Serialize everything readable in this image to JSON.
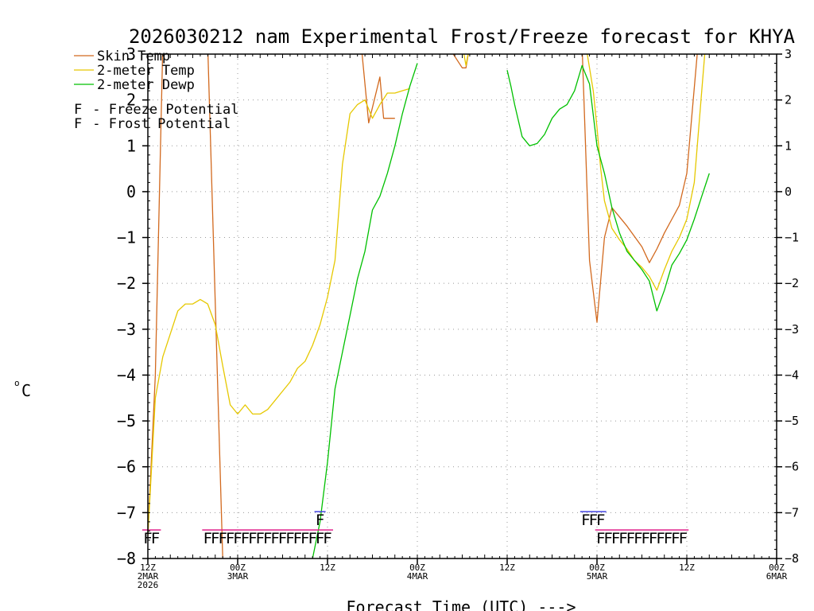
{
  "chart_data": {
    "type": "line",
    "title": "2026030212 nam Experimental Frost/Freeze forecast for KHYA",
    "xlabel": "Forecast Time (UTC) --->",
    "ylabel": "°C",
    "ylabel_degree": "o",
    "ylabel_unit": "C",
    "ylim": [
      -8,
      3
    ],
    "xlim": [
      0,
      84
    ],
    "y_ticks": [
      -8,
      -7,
      -6,
      -5,
      -4,
      -3,
      -2,
      -1,
      0,
      1,
      2,
      3
    ],
    "y_tick_labels": [
      "−8",
      "−7",
      "−6",
      "−5",
      "−4",
      "−3",
      "−2",
      "−1",
      "0",
      "1",
      "2",
      "3"
    ],
    "x_ticks": [
      {
        "x": 0,
        "lines": [
          "12Z",
          "2MAR",
          "2026"
        ]
      },
      {
        "x": 12,
        "lines": [
          "00Z",
          "3MAR"
        ]
      },
      {
        "x": 24,
        "lines": [
          "12Z"
        ]
      },
      {
        "x": 36,
        "lines": [
          "00Z",
          "4MAR"
        ]
      },
      {
        "x": 48,
        "lines": [
          "12Z"
        ]
      },
      {
        "x": 60,
        "lines": [
          "00Z",
          "5MAR"
        ]
      },
      {
        "x": 72,
        "lines": [
          "12Z"
        ]
      },
      {
        "x": 84,
        "lines": [
          "00Z",
          "6MAR"
        ]
      }
    ],
    "grid": true,
    "legend_position": "top-left",
    "series": [
      {
        "name": "Skin Temp",
        "color": "#d2691e",
        "x": [
          0,
          1,
          2,
          8,
          10,
          25.5,
          26.5,
          28.5,
          29.5,
          31,
          31.5,
          33,
          40,
          42,
          42.5,
          43,
          58,
          59,
          60,
          61,
          62,
          64,
          66,
          67,
          68,
          69,
          70,
          71,
          72,
          73.5
        ],
        "y": [
          -7.5,
          -4,
          3.2,
          3.2,
          -8,
          3.2,
          3.2,
          3.2,
          1.5,
          2.5,
          1.6,
          1.6,
          3.2,
          2.7,
          2.7,
          3.2,
          3.2,
          -1.5,
          -2.85,
          -1,
          -0.35,
          -0.75,
          -1.2,
          -1.55,
          -1.25,
          -0.9,
          -0.6,
          -0.3,
          0.4,
          3.2
        ],
        "segments": [
          [
            0,
            3
          ],
          [
            3,
            5
          ],
          [
            5,
            12
          ],
          [
            12,
            16
          ],
          [
            16,
            30
          ]
        ]
      },
      {
        "name": "2-meter Temp",
        "color": "#e6c800",
        "x": [
          0,
          1,
          2,
          4,
          5,
          6,
          7,
          8,
          9,
          10,
          11,
          12,
          13,
          14,
          15,
          16,
          17,
          18,
          19,
          20,
          21,
          22,
          23,
          24,
          25,
          26,
          27,
          28,
          29,
          30,
          31,
          32,
          33,
          35,
          42,
          42.5,
          43,
          58.5,
          59.5,
          60,
          60.5,
          61,
          62,
          63,
          64,
          65,
          66,
          67,
          68,
          69,
          70,
          71,
          72,
          73,
          74.5
        ],
        "y": [
          -7.5,
          -4.5,
          -3.6,
          -2.6,
          -2.45,
          -2.45,
          -2.35,
          -2.45,
          -2.9,
          -3.8,
          -4.65,
          -4.85,
          -4.65,
          -4.85,
          -4.85,
          -4.75,
          -4.55,
          -4.35,
          -4.15,
          -3.85,
          -3.7,
          -3.35,
          -2.9,
          -2.3,
          -1.5,
          0.6,
          1.7,
          1.9,
          2.0,
          1.6,
          1.9,
          2.15,
          2.15,
          2.25,
          3.2,
          2.75,
          3.2,
          3.2,
          2.2,
          1.4,
          0.5,
          -0.2,
          -0.8,
          -1.05,
          -1.25,
          -1.5,
          -1.65,
          -1.85,
          -2.15,
          -1.7,
          -1.3,
          -1.0,
          -0.6,
          0.2,
          3.2
        ],
        "segments": [
          [
            0,
            34
          ],
          [
            34,
            37
          ],
          [
            37,
            55
          ]
        ]
      },
      {
        "name": "2-meter Dewp",
        "color": "#00c000",
        "x": [
          22,
          23,
          24,
          25,
          26,
          27,
          28,
          29,
          30,
          31,
          32,
          33,
          34,
          35,
          36,
          48,
          48.5,
          49,
          50,
          51,
          52,
          53,
          54,
          55,
          56,
          57,
          58,
          59,
          60,
          61,
          62,
          63,
          64,
          65,
          66,
          67,
          68,
          69,
          70,
          71,
          72,
          73,
          74,
          75
        ],
        "y": [
          -8,
          -7.2,
          -5.9,
          -4.3,
          -3.5,
          -2.7,
          -1.9,
          -1.3,
          -0.4,
          -0.1,
          0.4,
          1.0,
          1.7,
          2.3,
          2.8,
          2.65,
          2.3,
          1.9,
          1.2,
          1.0,
          1.05,
          1.25,
          1.6,
          1.8,
          1.9,
          2.2,
          2.75,
          2.35,
          1.0,
          0.4,
          -0.35,
          -0.9,
          -1.3,
          -1.5,
          -1.7,
          -1.95,
          -2.6,
          -2.15,
          -1.6,
          -1.35,
          -1.05,
          -0.6,
          -0.1,
          0.4
        ],
        "segments": [
          [
            0,
            15
          ],
          [
            15,
            44
          ]
        ]
      }
    ],
    "legend_entries": [
      {
        "label": "Skin Temp",
        "color": "#d2691e"
      },
      {
        "label": "2-meter Temp",
        "color": "#e6c800"
      },
      {
        "label": "2-meter Dewp",
        "color": "#00c000"
      }
    ],
    "potential_legend": [
      {
        "glyph": "F",
        "text": " - Freeze Potential",
        "color": "#e0208c"
      },
      {
        "glyph": "F",
        "text": " - Frost Potential",
        "color": "#4040e0"
      }
    ],
    "freeze_potential": {
      "color": "#e0208c",
      "y": -7.5,
      "runs": [
        {
          "x_start": 0,
          "x_end": 1
        },
        {
          "x_start": 8,
          "x_end": 24
        },
        {
          "x_start": 60.5,
          "x_end": 71.5
        }
      ]
    },
    "frost_potential": {
      "color": "#4040e0",
      "y": -7.1,
      "runs": [
        {
          "x_start": 23,
          "x_end": 23
        },
        {
          "x_start": 58.5,
          "x_end": 60.5
        }
      ]
    }
  }
}
